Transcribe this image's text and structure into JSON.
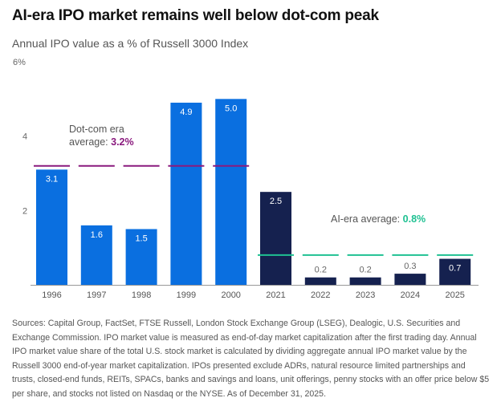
{
  "title": "AI-era IPO market remains well below dot-com peak",
  "chart_data": {
    "type": "bar",
    "title": "AI-era IPO market remains well below dot-com peak",
    "subtitle": "Annual IPO value as a % of Russell 3000 Index",
    "categories": [
      "1996",
      "1997",
      "1998",
      "1999",
      "2000",
      "2021",
      "2022",
      "2023",
      "2024",
      "2025"
    ],
    "values": [
      3.1,
      1.6,
      1.5,
      4.9,
      5.0,
      2.5,
      0.2,
      0.2,
      0.3,
      0.7
    ],
    "data_labels": [
      "3.1",
      "1.6",
      "1.5",
      "4.9",
      "5.0",
      "2.5",
      "0.2",
      "0.2",
      "0.3",
      "0.7"
    ],
    "era": [
      "dotcom",
      "dotcom",
      "dotcom",
      "dotcom",
      "dotcom",
      "ai",
      "ai",
      "ai",
      "ai",
      "ai"
    ],
    "ylim": [
      0,
      6
    ],
    "yticks": [
      2,
      4,
      6
    ],
    "ytick_labels": [
      "2",
      "4",
      "6%"
    ],
    "xlabel": "",
    "ylabel": "",
    "grid": false,
    "colors": {
      "dotcom": "#0a6fe0",
      "ai": "#15214f",
      "dotcom_avg": "#8a1a7e",
      "ai_avg": "#1fc192",
      "axis": "#999999"
    },
    "averages": [
      {
        "era": "dotcom",
        "value": 3.2,
        "label_prefix": "Dot-com era",
        "label_mid": "average: ",
        "label_value": "3.2%"
      },
      {
        "era": "ai",
        "value": 0.8,
        "label_prefix": "AI-era average: ",
        "label_value": "0.8%"
      }
    ]
  },
  "footnote": "Sources: Capital Group, FactSet, FTSE Russell, London Stock Exchange Group (LSEG), Dealogic, U.S. Securities and Exchange Commission. IPO market value is measured as end-of-day market capitalization after the first trading day. Annual IPO market value share of the total U.S. stock market is calculated by dividing aggregate annual IPO market value by the Russell 3000 end-of-year market capitalization. IPOs presented exclude ADRs, natural resource limited partnerships and trusts, closed-end funds, REITs, SPACs, banks and savings and loans, unit offerings, penny stocks with an offer price below $5 per share, and stocks not listed on Nasdaq or the NYSE. As of December 31, 2025."
}
